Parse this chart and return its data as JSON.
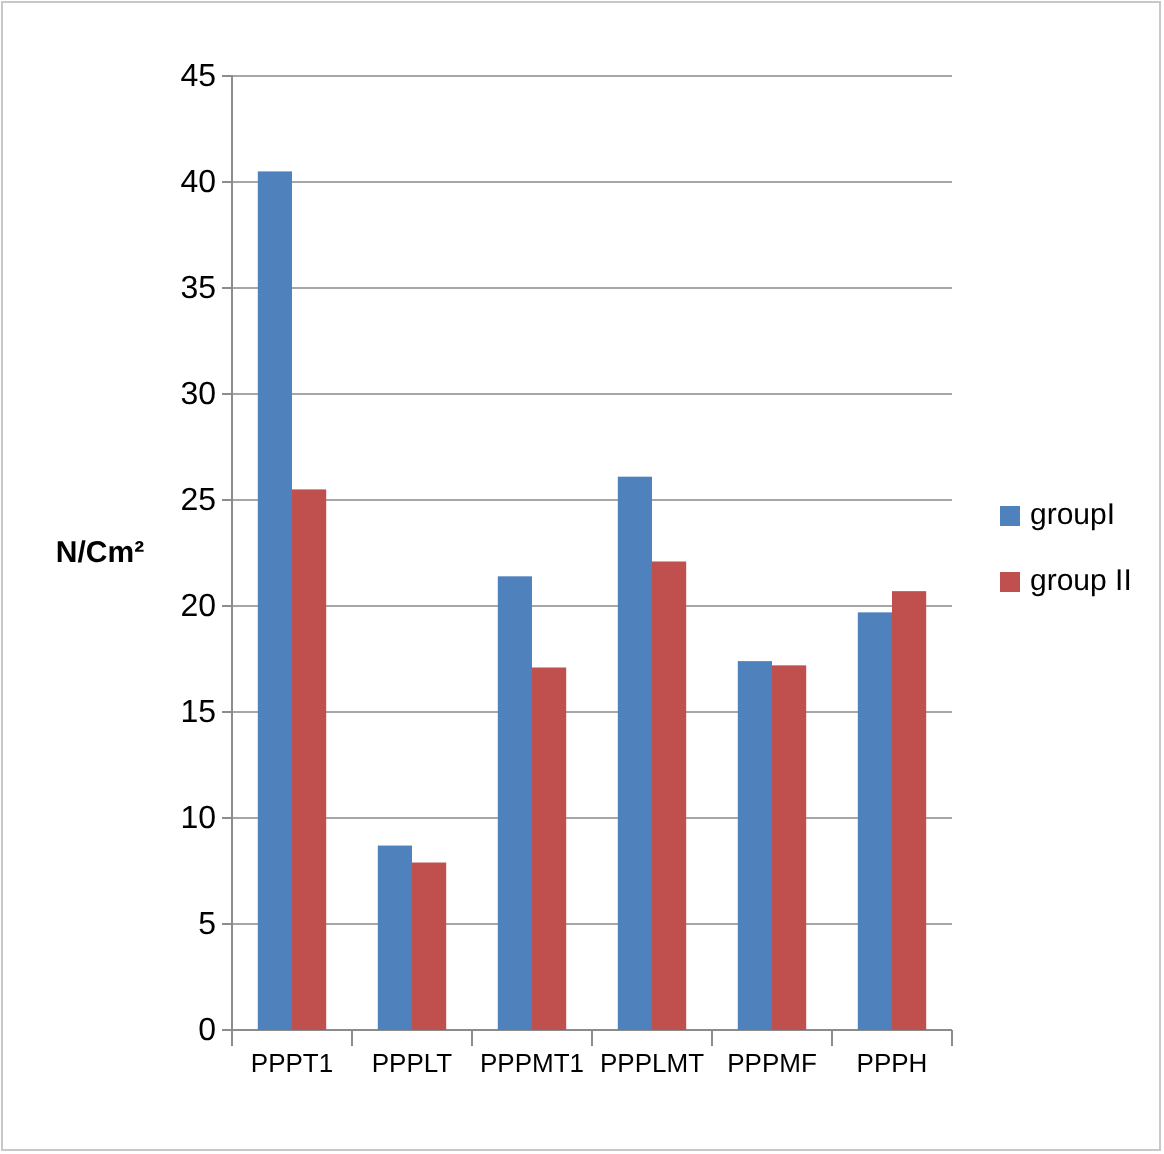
{
  "chart_data": {
    "type": "bar",
    "ylabel": "N/Cm²",
    "categories": [
      "PPPT1",
      "PPPLT",
      "PPPMT1",
      "PPPLMT",
      "PPPMF",
      "PPPH"
    ],
    "series": [
      {
        "name": "groupI",
        "color": "#4f81bd",
        "values": [
          40.5,
          8.7,
          21.4,
          26.1,
          17.4,
          19.7
        ]
      },
      {
        "name": "group II",
        "color": "#c0504d",
        "values": [
          25.5,
          7.9,
          17.1,
          22.1,
          17.2,
          20.7
        ]
      }
    ],
    "ylim": [
      0,
      45
    ],
    "yticks": [
      0,
      5,
      10,
      15,
      20,
      25,
      30,
      35,
      40,
      45
    ],
    "grid": "y",
    "legend": "right"
  }
}
